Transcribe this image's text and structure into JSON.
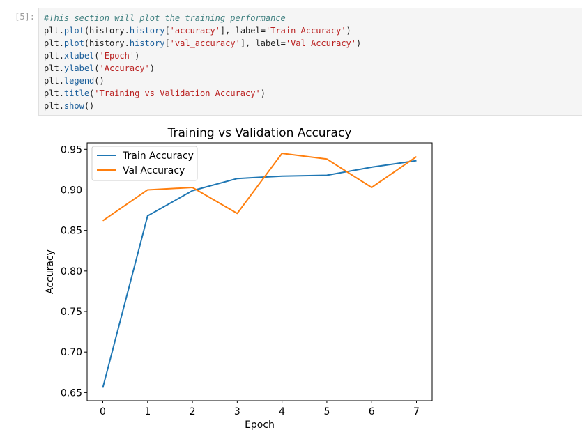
{
  "cell": {
    "prompt": "[5]:",
    "lines": [
      [
        {
          "t": "#This section will plot the training performance",
          "c": "comment"
        }
      ],
      [
        {
          "t": "plt",
          "c": "obj"
        },
        {
          "t": ".",
          "c": "obj"
        },
        {
          "t": "plot",
          "c": "attr"
        },
        {
          "t": "(history.",
          "c": "obj"
        },
        {
          "t": "history",
          "c": "attr"
        },
        {
          "t": "[",
          "c": "obj"
        },
        {
          "t": "'accuracy'",
          "c": "str"
        },
        {
          "t": "], label=",
          "c": "obj"
        },
        {
          "t": "'Train Accuracy'",
          "c": "str"
        },
        {
          "t": ")",
          "c": "obj"
        }
      ],
      [
        {
          "t": "plt",
          "c": "obj"
        },
        {
          "t": ".",
          "c": "obj"
        },
        {
          "t": "plot",
          "c": "attr"
        },
        {
          "t": "(history.",
          "c": "obj"
        },
        {
          "t": "history",
          "c": "attr"
        },
        {
          "t": "[",
          "c": "obj"
        },
        {
          "t": "'val_accuracy'",
          "c": "str"
        },
        {
          "t": "], label=",
          "c": "obj"
        },
        {
          "t": "'Val Accuracy'",
          "c": "str"
        },
        {
          "t": ")",
          "c": "obj"
        }
      ],
      [
        {
          "t": "plt",
          "c": "obj"
        },
        {
          "t": ".",
          "c": "obj"
        },
        {
          "t": "xlabel",
          "c": "attr"
        },
        {
          "t": "(",
          "c": "obj"
        },
        {
          "t": "'Epoch'",
          "c": "str"
        },
        {
          "t": ")",
          "c": "obj"
        }
      ],
      [
        {
          "t": "plt",
          "c": "obj"
        },
        {
          "t": ".",
          "c": "obj"
        },
        {
          "t": "ylabel",
          "c": "attr"
        },
        {
          "t": "(",
          "c": "obj"
        },
        {
          "t": "'Accuracy'",
          "c": "str"
        },
        {
          "t": ")",
          "c": "obj"
        }
      ],
      [
        {
          "t": "plt",
          "c": "obj"
        },
        {
          "t": ".",
          "c": "obj"
        },
        {
          "t": "legend",
          "c": "attr"
        },
        {
          "t": "()",
          "c": "obj"
        }
      ],
      [
        {
          "t": "plt",
          "c": "obj"
        },
        {
          "t": ".",
          "c": "obj"
        },
        {
          "t": "title",
          "c": "attr"
        },
        {
          "t": "(",
          "c": "obj"
        },
        {
          "t": "'Training vs Validation Accuracy'",
          "c": "str"
        },
        {
          "t": ")",
          "c": "obj"
        }
      ],
      [
        {
          "t": "plt",
          "c": "obj"
        },
        {
          "t": ".",
          "c": "obj"
        },
        {
          "t": "show",
          "c": "attr"
        },
        {
          "t": "()",
          "c": "obj"
        }
      ]
    ]
  },
  "chart_data": {
    "type": "line",
    "title": "Training vs Validation Accuracy",
    "xlabel": "Epoch",
    "ylabel": "Accuracy",
    "x": [
      0,
      1,
      2,
      3,
      4,
      5,
      6,
      7
    ],
    "series": [
      {
        "name": "Train Accuracy",
        "color": "#1f77b4",
        "values": [
          0.656,
          0.868,
          0.899,
          0.914,
          0.917,
          0.918,
          0.928,
          0.936
        ]
      },
      {
        "name": "Val Accuracy",
        "color": "#ff7f0e",
        "values": [
          0.862,
          0.9,
          0.903,
          0.871,
          0.945,
          0.938,
          0.903,
          0.941
        ]
      }
    ],
    "xticks": [
      "0",
      "1",
      "2",
      "3",
      "4",
      "5",
      "6",
      "7"
    ],
    "yticks": [
      "0.65",
      "0.70",
      "0.75",
      "0.80",
      "0.85",
      "0.90",
      "0.95"
    ],
    "ylim": [
      0.64,
      0.958
    ],
    "xlim": [
      -0.35,
      7.35
    ],
    "legend": "upper left",
    "grid": false
  }
}
